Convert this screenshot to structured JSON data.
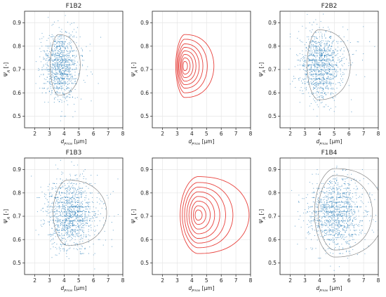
{
  "chart_data": [
    {
      "type": "scatter",
      "title": "F1B2",
      "xlabel": "d_F_max [μm]",
      "ylabel": "Ψ_A [-]",
      "xlim": [
        1.3,
        8
      ],
      "ylim": [
        0.45,
        0.95
      ],
      "xticks": [
        2,
        3,
        4,
        5,
        6,
        7,
        8
      ],
      "yticks": [
        0.5,
        0.6,
        0.7,
        0.8,
        0.9
      ],
      "grid": true,
      "scatter": {
        "center": [
          3.7,
          0.715
        ],
        "spread": [
          0.55,
          0.07
        ],
        "tail": 1.8,
        "color": "#1f77b4",
        "count": 1100
      },
      "contours": {
        "center": [
          3.6,
          0.72
        ],
        "color": "#555555",
        "levels": [
          {
            "rx_left": 0.55,
            "rx_right": 1.5,
            "ry": 0.13
          }
        ]
      }
    },
    {
      "type": "contour",
      "title": "",
      "xlabel": "d_F_max [μm]",
      "ylabel": "Ψ_A [-]",
      "xlim": [
        1.3,
        8
      ],
      "ylim": [
        0.45,
        0.95
      ],
      "xticks": [
        2,
        3,
        4,
        5,
        6,
        7,
        8
      ],
      "yticks": [
        0.5,
        0.6,
        0.7,
        0.8,
        0.9
      ],
      "grid": true,
      "contours": {
        "center": [
          3.5,
          0.715
        ],
        "color": "#e8413c",
        "levels": [
          {
            "rx_left": 0.1,
            "rx_right": 0.2,
            "ry": 0.02
          },
          {
            "rx_left": 0.18,
            "rx_right": 0.38,
            "ry": 0.035
          },
          {
            "rx_left": 0.25,
            "rx_right": 0.58,
            "ry": 0.05
          },
          {
            "rx_left": 0.32,
            "rx_right": 0.78,
            "ry": 0.065
          },
          {
            "rx_left": 0.4,
            "rx_right": 1.0,
            "ry": 0.08
          },
          {
            "rx_left": 0.46,
            "rx_right": 1.25,
            "ry": 0.095
          },
          {
            "rx_left": 0.53,
            "rx_right": 1.55,
            "ry": 0.115
          },
          {
            "rx_left": 0.6,
            "rx_right": 2.0,
            "ry": 0.135
          }
        ]
      }
    },
    {
      "type": "scatter",
      "title": "F2B2",
      "xlabel": "d_F_max [μm]",
      "ylabel": "Ψ_A [-]",
      "xlim": [
        1.3,
        8
      ],
      "ylim": [
        0.45,
        0.95
      ],
      "xticks": [
        2,
        3,
        4,
        5,
        6,
        7,
        8
      ],
      "yticks": [
        0.5,
        0.6,
        0.7,
        0.8,
        0.9
      ],
      "grid": true,
      "scatter": {
        "center": [
          4.0,
          0.715
        ],
        "spread": [
          0.7,
          0.07
        ],
        "tail": 1.8,
        "color": "#1f77b4",
        "count": 1200
      },
      "contours": {
        "center": [
          3.9,
          0.72
        ],
        "color": "#555555",
        "levels": [
          {
            "rx_left": 0.75,
            "rx_right": 2.2,
            "ry": 0.15
          }
        ]
      }
    },
    {
      "type": "scatter",
      "title": "F1B3",
      "xlabel": "d_F_max [μm]",
      "ylabel": "Ψ_A [-]",
      "xlim": [
        1.3,
        8
      ],
      "ylim": [
        0.45,
        0.95
      ],
      "xticks": [
        2,
        3,
        4,
        5,
        6,
        7,
        8
      ],
      "yticks": [
        0.5,
        0.6,
        0.7,
        0.8,
        0.9
      ],
      "grid": true,
      "scatter": {
        "center": [
          4.3,
          0.71
        ],
        "spread": [
          0.8,
          0.075
        ],
        "tail": 2.0,
        "color": "#1f77b4",
        "count": 1300
      },
      "contours": {
        "center": [
          4.2,
          0.715
        ],
        "color": "#555555",
        "levels": [
          {
            "rx_left": 0.95,
            "rx_right": 2.7,
            "ry": 0.14
          }
        ]
      }
    },
    {
      "type": "contour",
      "title": "",
      "xlabel": "d_F_max [μm]",
      "ylabel": "Ψ_A [-]",
      "xlim": [
        1.3,
        8
      ],
      "ylim": [
        0.45,
        0.95
      ],
      "xticks": [
        2,
        3,
        4,
        5,
        6,
        7,
        8
      ],
      "yticks": [
        0.5,
        0.6,
        0.7,
        0.8,
        0.9
      ],
      "grid": true,
      "contours": {
        "center": [
          4.4,
          0.705
        ],
        "color": "#e8413c",
        "levels": [
          {
            "rx_left": 0.18,
            "rx_right": 0.3,
            "ry": 0.022
          },
          {
            "rx_left": 0.3,
            "rx_right": 0.55,
            "ry": 0.04
          },
          {
            "rx_left": 0.45,
            "rx_right": 0.85,
            "ry": 0.06
          },
          {
            "rx_left": 0.6,
            "rx_right": 1.15,
            "ry": 0.08
          },
          {
            "rx_left": 0.75,
            "rx_right": 1.5,
            "ry": 0.1
          },
          {
            "rx_left": 0.9,
            "rx_right": 1.9,
            "ry": 0.12
          },
          {
            "rx_left": 1.05,
            "rx_right": 2.4,
            "ry": 0.14
          },
          {
            "rx_left": 1.2,
            "rx_right": 3.5,
            "ry": 0.165
          }
        ]
      }
    },
    {
      "type": "scatter",
      "title": "F1B4",
      "xlabel": "d_F_max [μm]",
      "ylabel": "Ψ_A [-]",
      "xlim": [
        1.3,
        8
      ],
      "ylim": [
        0.45,
        0.95
      ],
      "xticks": [
        2,
        3,
        4,
        5,
        6,
        7,
        8
      ],
      "yticks": [
        0.5,
        0.6,
        0.7,
        0.8,
        0.9
      ],
      "grid": true,
      "scatter": {
        "center": [
          5.0,
          0.715
        ],
        "spread": [
          0.9,
          0.075
        ],
        "tail": 2.2,
        "color": "#1f77b4",
        "count": 1300
      },
      "contours": {
        "center": [
          5.0,
          0.715
        ],
        "color": "#555555",
        "levels": [
          {
            "rx_left": 1.1,
            "rx_right": 2.6,
            "ry": 0.16
          },
          {
            "rx_left": 1.35,
            "rx_right": 3.4,
            "ry": 0.19
          }
        ]
      }
    }
  ]
}
